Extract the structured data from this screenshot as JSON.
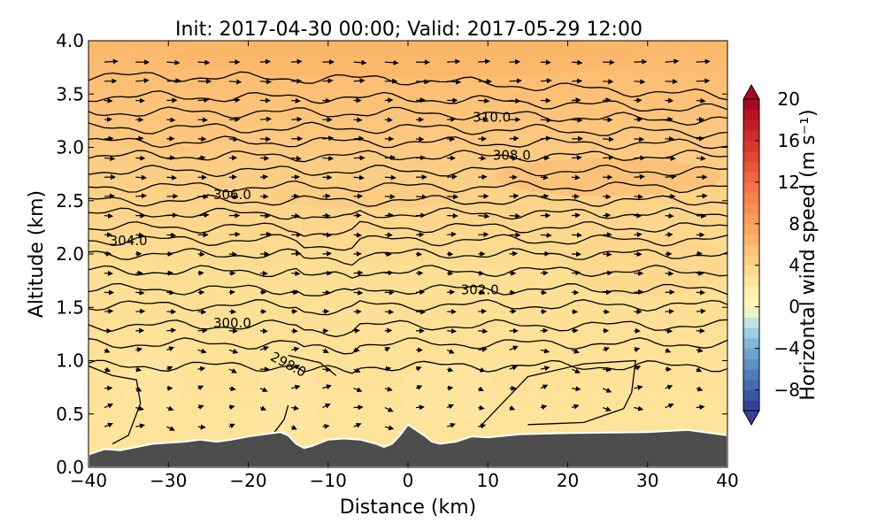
{
  "chart_data": {
    "type": "contour",
    "title": "Init: 2017-04-30 00:00; Valid: 2017-05-29 12:00",
    "xlabel": "Distance (km)",
    "ylabel": "Altitude (km)",
    "xlim": [
      -40,
      40
    ],
    "ylim": [
      0.0,
      4.0
    ],
    "x_ticks": [
      -40,
      -30,
      -20,
      -10,
      0,
      10,
      20,
      30,
      40
    ],
    "x_tick_labels": [
      "−40",
      "−30",
      "−20",
      "−10",
      "0",
      "10",
      "20",
      "30",
      "40"
    ],
    "y_ticks": [
      0.0,
      0.5,
      1.0,
      1.5,
      2.0,
      2.5,
      3.0,
      3.5,
      4.0
    ],
    "y_tick_labels": [
      "0.0",
      "0.5",
      "1.0",
      "1.5",
      "2.0",
      "2.5",
      "3.0",
      "3.5",
      "4.0"
    ],
    "colorbar": {
      "label": "Horizontal wind speed (m s⁻¹)",
      "range": [
        -10,
        20
      ],
      "ticks": [
        -8,
        -4,
        0,
        4,
        8,
        12,
        16,
        20
      ],
      "tick_labels": [
        "−8",
        "−4",
        "0",
        "4",
        "8",
        "12",
        "16",
        "20"
      ],
      "extend": "both",
      "colormap": "RdYlBu_r"
    },
    "filled_field": "Horizontal wind speed, mostly 4 to 8 m s-1",
    "isentrope_labels": [
      {
        "text": "310.0",
        "x": 10.5,
        "y": 3.28
      },
      {
        "text": "308.0",
        "x": 13.0,
        "y": 2.92
      },
      {
        "text": "306.0",
        "x": -22.0,
        "y": 2.55
      },
      {
        "text": "304.0",
        "x": -35.0,
        "y": 2.12
      },
      {
        "text": "302.0",
        "x": 9.0,
        "y": 1.66
      },
      {
        "text": "300.0",
        "x": -22.0,
        "y": 1.35
      },
      {
        "text": "298.0",
        "x": -15.0,
        "y": 0.96
      }
    ],
    "terrain": {
      "x": [
        -40,
        -38,
        -36,
        -34,
        -32,
        -30,
        -28,
        -26,
        -24,
        -22,
        -20,
        -18,
        -16,
        -15,
        -14,
        -13,
        -12,
        -10,
        -8,
        -6,
        -4,
        -3,
        -2,
        -1,
        0,
        1,
        2,
        3,
        4,
        6,
        8,
        10,
        14,
        20,
        30,
        35,
        40
      ],
      "y": [
        0.12,
        0.17,
        0.16,
        0.19,
        0.22,
        0.23,
        0.24,
        0.26,
        0.24,
        0.26,
        0.29,
        0.31,
        0.33,
        0.3,
        0.22,
        0.18,
        0.2,
        0.26,
        0.27,
        0.26,
        0.22,
        0.19,
        0.22,
        0.3,
        0.4,
        0.35,
        0.3,
        0.24,
        0.22,
        0.24,
        0.29,
        0.28,
        0.31,
        0.32,
        0.33,
        0.35,
        0.3
      ]
    }
  }
}
